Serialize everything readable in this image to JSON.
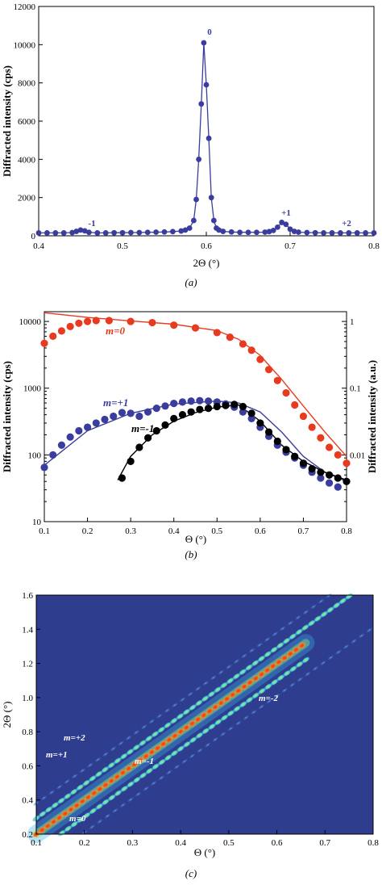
{
  "colors": {
    "blue": "#3a3d9e",
    "red": "#e83a1f",
    "black": "#000000",
    "heatmap_bg": "#2f3d8f"
  },
  "chart_data": [
    {
      "type": "line",
      "panel_caption": "(a)",
      "xlabel": "2Θ (°)",
      "ylabel": "Diffracted intensity (cps)",
      "xlim": [
        0.4,
        0.8
      ],
      "ylim": [
        0,
        12000
      ],
      "x_ticks": [
        "0.4",
        "0.5",
        "0.6",
        "0.7",
        "0.8"
      ],
      "y_ticks": [
        "0",
        "2000",
        "4000",
        "6000",
        "8000",
        "10000",
        "12000"
      ],
      "series": [
        {
          "color": "#3a3d9e",
          "x": [
            0.4,
            0.41,
            0.42,
            0.43,
            0.44,
            0.445,
            0.45,
            0.455,
            0.46,
            0.47,
            0.48,
            0.49,
            0.5,
            0.51,
            0.52,
            0.53,
            0.54,
            0.55,
            0.56,
            0.57,
            0.575,
            0.58,
            0.585,
            0.588,
            0.591,
            0.594,
            0.597,
            0.6,
            0.603,
            0.606,
            0.609,
            0.612,
            0.615,
            0.62,
            0.63,
            0.64,
            0.65,
            0.66,
            0.67,
            0.675,
            0.68,
            0.685,
            0.69,
            0.695,
            0.7,
            0.705,
            0.71,
            0.72,
            0.73,
            0.74,
            0.75,
            0.76,
            0.77,
            0.78,
            0.79,
            0.8
          ],
          "y": [
            150,
            150,
            150,
            150,
            170,
            230,
            300,
            260,
            180,
            150,
            150,
            160,
            160,
            170,
            170,
            180,
            190,
            200,
            220,
            250,
            300,
            400,
            800,
            1900,
            4000,
            6900,
            10100,
            7900,
            5100,
            2000,
            800,
            400,
            300,
            230,
            200,
            180,
            180,
            180,
            190,
            220,
            280,
            450,
            700,
            600,
            350,
            230,
            190,
            170,
            160,
            150,
            150,
            150,
            150,
            150,
            150,
            150
          ]
        }
      ],
      "annotations": [
        "-1",
        "0",
        "+1",
        "+2"
      ]
    },
    {
      "type": "scatter",
      "panel_caption": "(b)",
      "xlabel": "Θ (°)",
      "ylabel": "Diffracted intensity (cps)",
      "ylabel_right": "Diffracted intensity (a.u.)",
      "yscale": "log",
      "xlim": [
        0.1,
        0.8
      ],
      "ylim": [
        10,
        14000
      ],
      "x_ticks": [
        "0.1",
        "0.2",
        "0.3",
        "0.4",
        "0.5",
        "0.6",
        "0.7",
        "0.8"
      ],
      "y_ticks": [
        "10",
        "100",
        "1000",
        "10000"
      ],
      "y_ticks_right": [
        "0.01",
        "0.1",
        "1"
      ],
      "series": [
        {
          "name": "m=0",
          "color": "#e83a1f",
          "x": [
            0.1,
            0.12,
            0.14,
            0.16,
            0.18,
            0.2,
            0.22,
            0.25,
            0.3,
            0.35,
            0.4,
            0.45,
            0.5,
            0.53,
            0.56,
            0.58,
            0.6,
            0.62,
            0.64,
            0.66,
            0.68,
            0.7,
            0.72,
            0.74,
            0.76,
            0.78,
            0.8
          ],
          "y": [
            4700,
            6000,
            7200,
            8400,
            9400,
            10000,
            10300,
            10300,
            10000,
            9600,
            8800,
            8000,
            6800,
            5800,
            4600,
            3700,
            2700,
            1900,
            1300,
            850,
            560,
            380,
            260,
            180,
            130,
            100,
            75
          ]
        },
        {
          "name": "m=+1",
          "color": "#3a3d9e",
          "x": [
            0.1,
            0.12,
            0.14,
            0.16,
            0.18,
            0.2,
            0.22,
            0.24,
            0.26,
            0.28,
            0.3,
            0.32,
            0.34,
            0.36,
            0.38,
            0.4,
            0.42,
            0.44,
            0.46,
            0.48,
            0.5,
            0.52,
            0.54,
            0.56,
            0.58,
            0.6,
            0.62,
            0.64,
            0.66,
            0.68,
            0.7,
            0.72,
            0.74,
            0.76,
            0.78
          ],
          "y": [
            65,
            100,
            140,
            185,
            230,
            260,
            300,
            340,
            380,
            430,
            420,
            380,
            440,
            500,
            540,
            590,
            620,
            640,
            650,
            640,
            620,
            580,
            520,
            440,
            350,
            260,
            190,
            140,
            110,
            90,
            70,
            55,
            45,
            38,
            33
          ]
        },
        {
          "name": "m=-1",
          "color": "#000000",
          "x": [
            0.28,
            0.3,
            0.32,
            0.34,
            0.36,
            0.38,
            0.4,
            0.42,
            0.44,
            0.46,
            0.48,
            0.5,
            0.52,
            0.54,
            0.56,
            0.58,
            0.6,
            0.62,
            0.64,
            0.66,
            0.68,
            0.7,
            0.72,
            0.74,
            0.76,
            0.78,
            0.8
          ],
          "y": [
            45,
            80,
            130,
            180,
            230,
            280,
            350,
            400,
            440,
            480,
            500,
            530,
            550,
            570,
            530,
            420,
            300,
            220,
            160,
            120,
            95,
            75,
            62,
            55,
            50,
            45,
            40
          ]
        }
      ],
      "fit_curves": [
        {
          "color": "#e83a1f",
          "x": [
            0.1,
            0.2,
            0.3,
            0.4,
            0.5,
            0.55,
            0.6,
            0.65,
            0.7,
            0.75,
            0.8
          ],
          "y": [
            13500,
            11500,
            10200,
            9100,
            7300,
            5400,
            3100,
            1350,
            540,
            220,
            95
          ]
        },
        {
          "color": "#3a3d9e",
          "x": [
            0.1,
            0.2,
            0.3,
            0.4,
            0.5,
            0.55,
            0.6,
            0.65,
            0.7,
            0.75,
            0.8
          ],
          "y": [
            70,
            230,
            420,
            580,
            640,
            600,
            440,
            220,
            95,
            55,
            40
          ]
        },
        {
          "color": "#000000",
          "x": [
            0.27,
            0.3,
            0.35,
            0.4,
            0.45,
            0.5,
            0.55,
            0.6,
            0.65,
            0.7,
            0.75,
            0.8
          ],
          "y": [
            42,
            95,
            200,
            320,
            430,
            520,
            560,
            320,
            140,
            80,
            55,
            42
          ]
        }
      ]
    },
    {
      "type": "heatmap",
      "panel_caption": "(c)",
      "xlabel": "Θ (°)",
      "ylabel": "2Θ (°)",
      "xlim": [
        0.1,
        0.8
      ],
      "ylim": [
        0.2,
        1.6
      ],
      "x_ticks": [
        "0.1",
        "0.2",
        "0.3",
        "0.4",
        "0.5",
        "0.6",
        "0.7",
        "0.8"
      ],
      "y_ticks": [
        "0.2",
        "0.4",
        "0.6",
        "0.8",
        "1.0",
        "1.2",
        "1.4",
        "1.6"
      ],
      "orders": [
        {
          "m": "m=0",
          "offset": 0.0
        },
        {
          "m": "m=+1",
          "offset": 0.092
        },
        {
          "m": "m=-1",
          "offset": -0.1
        },
        {
          "m": "m=+2",
          "offset": 0.18
        },
        {
          "m": "m=-2",
          "offset": -0.19
        }
      ],
      "annotations": [
        "m=+2",
        "m=+1",
        "m=-1",
        "m=0",
        "m=-2"
      ]
    }
  ]
}
